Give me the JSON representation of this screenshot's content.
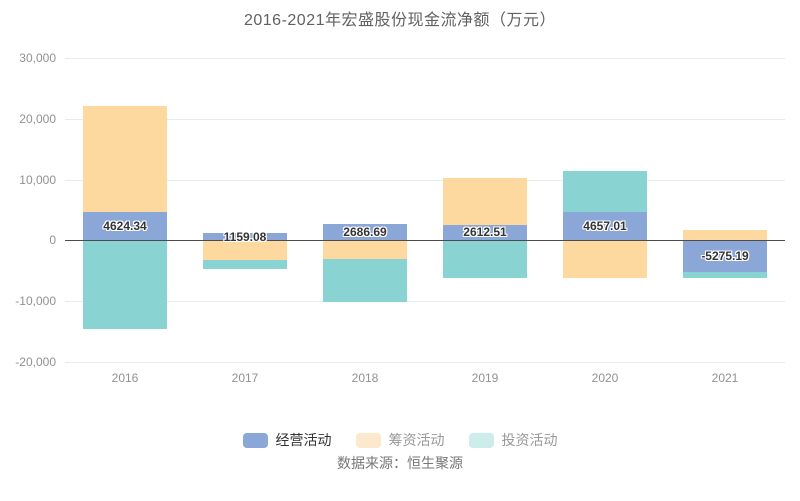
{
  "title": "2016-2021年宏盛股份现金流净额（万元）",
  "source": "数据来源：恒生聚源",
  "chart_data": {
    "type": "bar",
    "stacked": true,
    "title": "2016-2021年宏盛股份现金流净额（万元）",
    "categories": [
      "2016",
      "2017",
      "2018",
      "2019",
      "2020",
      "2021"
    ],
    "series": [
      {
        "name": "经营活动",
        "color": "#8ba7d7",
        "legend_swatch": "#8ba7d7",
        "legend_text_color": "#333333",
        "values": [
          4624.34,
          1159.08,
          2686.69,
          2612.51,
          4657.01,
          -5275.19
        ],
        "labels": [
          "4624.34",
          "1159.08",
          "2686.69",
          "2612.51",
          "4657.01",
          "-5275.19"
        ]
      },
      {
        "name": "筹资活动",
        "color": "#fdd9a0",
        "legend_swatch": "#fbe8cd",
        "legend_text_color": "#999999",
        "values": [
          17480,
          -3170,
          -2980,
          7720,
          -6150,
          1770
        ]
      },
      {
        "name": "投资活动",
        "color": "#8ad3d3",
        "legend_swatch": "#cdecec",
        "legend_text_color": "#999999",
        "values": [
          -14640,
          -1480,
          -7230,
          -6150,
          6750,
          -920
        ]
      }
    ],
    "ylim": [
      -20000,
      30000
    ],
    "yticks": [
      {
        "value": 30000,
        "label": "30,000"
      },
      {
        "value": 20000,
        "label": "20,000"
      },
      {
        "value": 10000,
        "label": "10,000"
      },
      {
        "value": 0,
        "label": "0"
      },
      {
        "value": -10000,
        "label": "-10,000"
      },
      {
        "value": -20000,
        "label": "-20,000"
      }
    ],
    "grid": true,
    "legend_position": "bottom",
    "xlabel": "",
    "ylabel": ""
  }
}
